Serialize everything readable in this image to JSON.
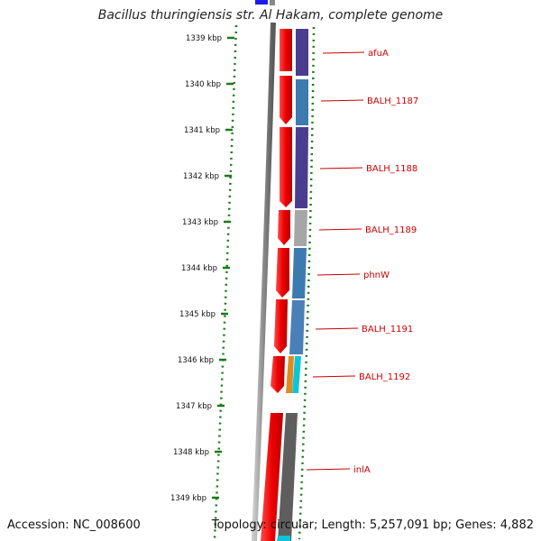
{
  "title": "Bacillus thuringiensis str. Al Hakam, complete genome",
  "accession": "Accession: NC_008600",
  "topology": "Topology: circular; Length: 5,257,091 bp; Genes: 4,882",
  "scale_labels": [
    "1339 kbp",
    "1340 kbp",
    "1341 kbp",
    "1342 kbp",
    "1343 kbp",
    "1344 kbp",
    "1345 kbp",
    "1346 kbp",
    "1347 kbp",
    "1348 kbp",
    "1349 kbp"
  ],
  "genes": [
    {
      "name": "afuA",
      "color": "#4a3d8f"
    },
    {
      "name": "BALH_1187",
      "color": "#3d7ab0"
    },
    {
      "name": "BALH_1188",
      "color": "#4a3d8f"
    },
    {
      "name": "BALH_1189",
      "color": "#a6a6a6"
    },
    {
      "name": "phnW",
      "color": "#3d7ab0"
    },
    {
      "name": "BALH_1191",
      "color": "#4a80b8"
    },
    {
      "name": "BALH_1192",
      "color": "#e08a1e"
    },
    {
      "name": "inlA",
      "color": "#5e5e5e"
    }
  ],
  "colors": {
    "scale": "#1a7a1a",
    "forward_strand": "#ee0000",
    "label": "#cc0000",
    "top_marker": "#1a1aee"
  }
}
